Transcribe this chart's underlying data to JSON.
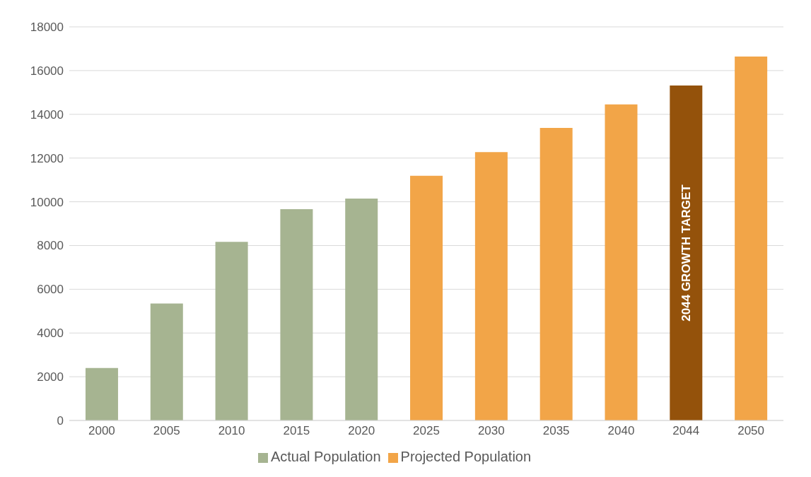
{
  "chart_data": {
    "type": "bar",
    "stacked": true,
    "categories": [
      "2000",
      "2005",
      "2010",
      "2015",
      "2020",
      "2025",
      "2030",
      "2035",
      "2040",
      "2044",
      "2050"
    ],
    "series": [
      {
        "name": "Actual Population",
        "color": "#a6b491",
        "values": [
          2400,
          5350,
          8170,
          9660,
          10150,
          null,
          null,
          null,
          null,
          null,
          null
        ]
      },
      {
        "name": "Projected Population",
        "color": "#f2a548",
        "colors": [
          "#f2a548",
          "#f2a548",
          "#f2a548",
          "#f2a548",
          "#f2a548",
          "#f2a548",
          "#f2a548",
          "#f2a548",
          "#f2a548",
          "#94520b",
          "#f2a548"
        ],
        "values": [
          null,
          null,
          null,
          null,
          null,
          11190,
          12270,
          13380,
          14450,
          15320,
          16640
        ]
      }
    ],
    "ylim": [
      0,
      18000
    ],
    "yticks": [
      0,
      2000,
      4000,
      6000,
      8000,
      10000,
      12000,
      14000,
      16000,
      18000
    ],
    "grid": "y",
    "legend": "bottom",
    "annotations": [
      "2044 GROWTH TARGET"
    ]
  }
}
